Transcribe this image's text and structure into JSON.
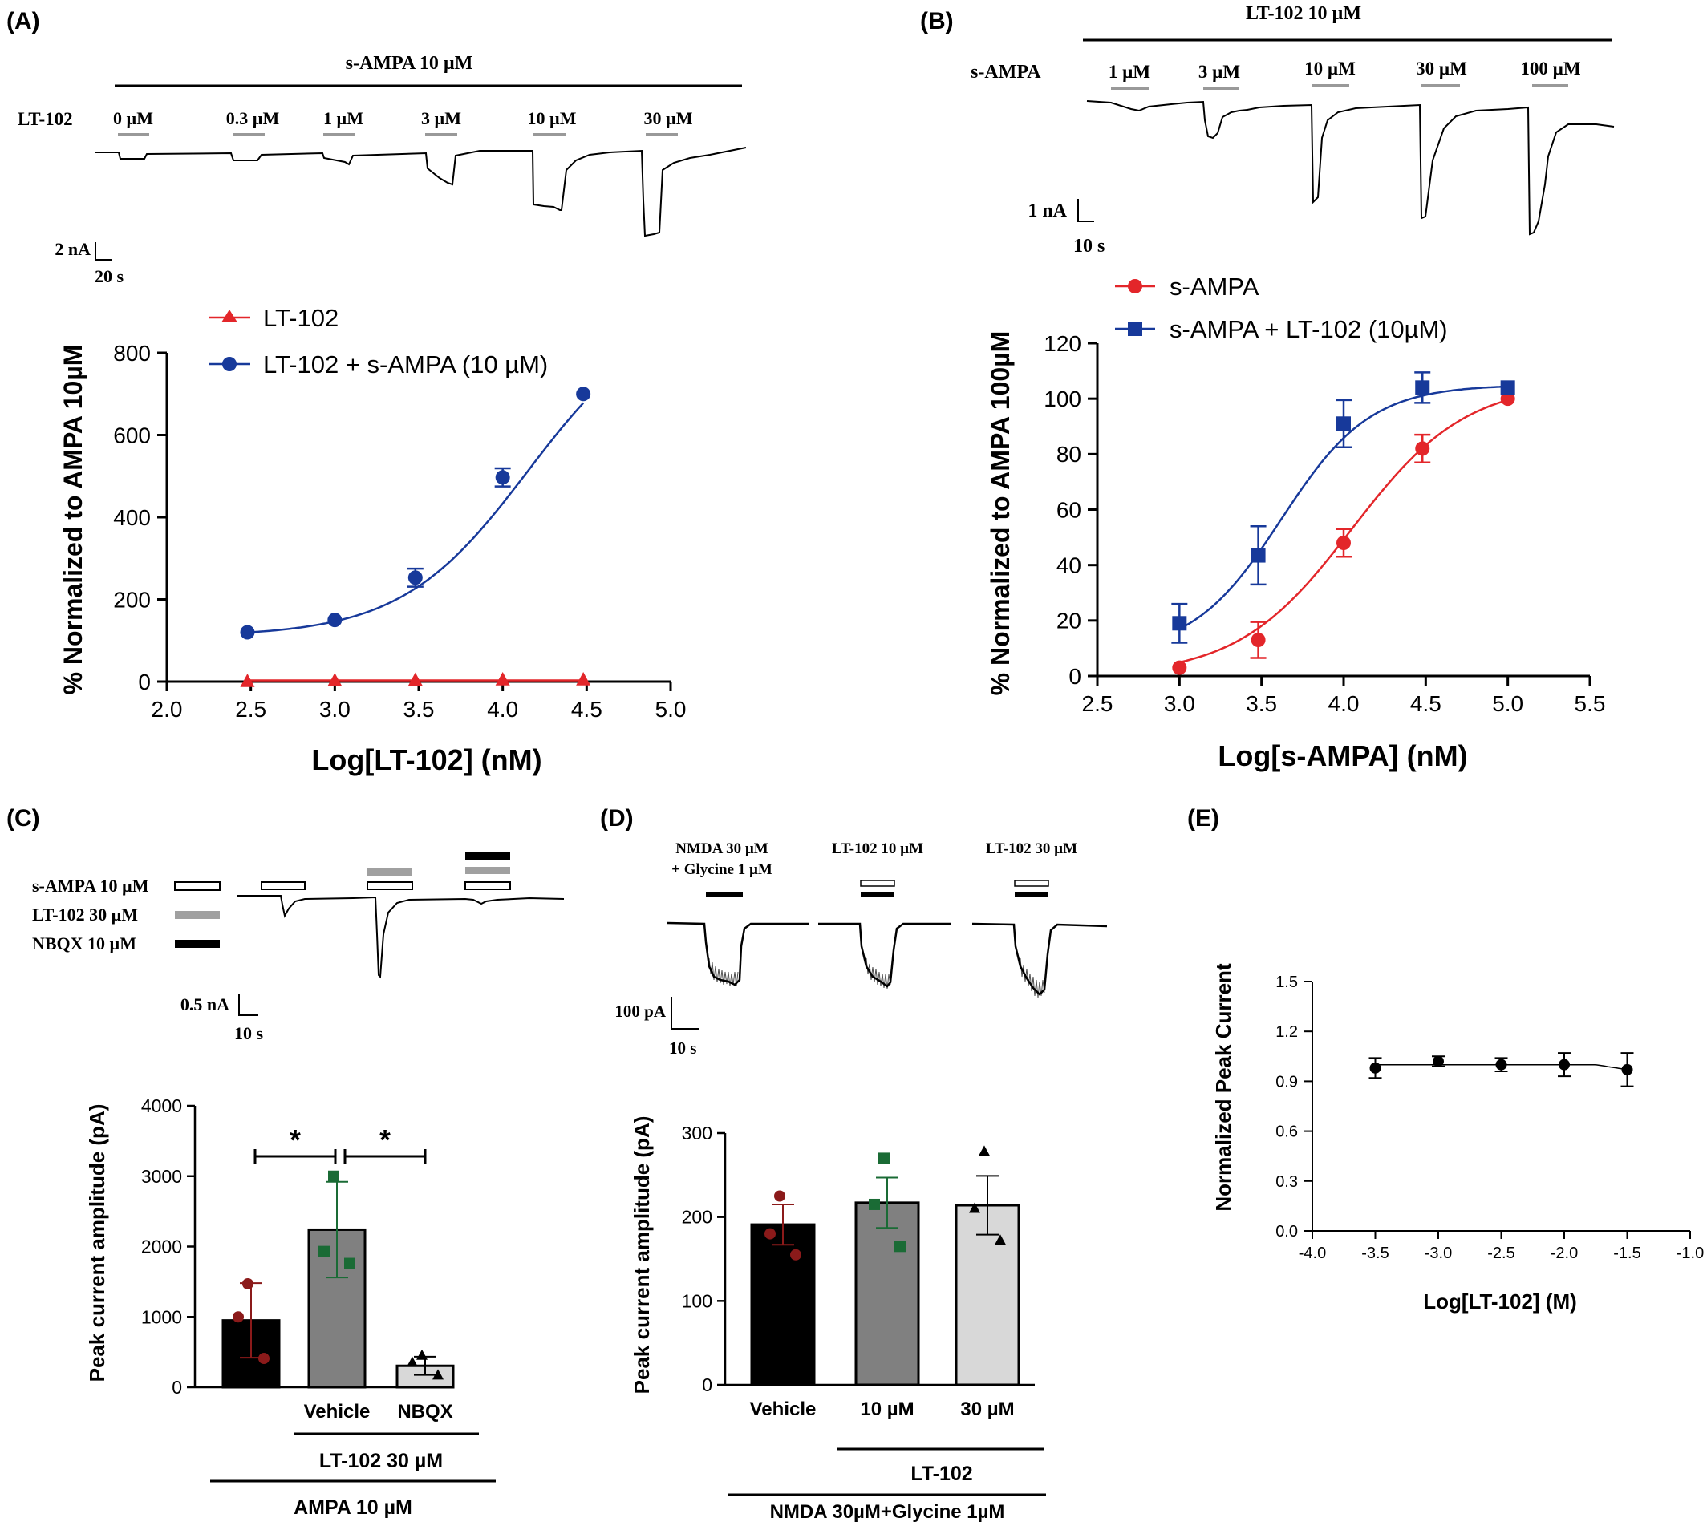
{
  "panels": {
    "A": {
      "letter": "(A)",
      "trace": {
        "bar_label": "s-AMPA 10 µM",
        "row_label": "LT-102",
        "concentrations": [
          "0 µM",
          "0.3 µM",
          "1 µM",
          "3 µM",
          "10 µM",
          "30 µM"
        ],
        "scale_current": "2 nA",
        "scale_time": "20 s"
      }
    },
    "B": {
      "letter": "(B)",
      "trace": {
        "bar_label": "LT-102 10 µM",
        "row_label": "s-AMPA",
        "concentrations": [
          "1 µM",
          "3 µM",
          "10 µM",
          "30 µM",
          "100 µM"
        ],
        "scale_current": "1 nA",
        "scale_time": "10 s"
      }
    },
    "C": {
      "letter": "(C)",
      "trace": {
        "legend": [
          "s-AMPA 10 µM",
          "LT-102 30 µM",
          "NBQX 10 µM"
        ],
        "scale_current": "0.5 nA",
        "scale_time": "10 s"
      },
      "bar_group_label": "LT-102 30 µM",
      "bottom_label": "AMPA 10 µM",
      "significance": "*"
    },
    "D": {
      "letter": "(D)",
      "trace": {
        "labels": [
          "NMDA 30 µM",
          "+ Glycine 1 µM",
          "LT-102 10 µM",
          "LT-102 30 µM"
        ],
        "scale_current": "100 pA",
        "scale_time": "10 s"
      },
      "group_label": "LT-102",
      "bottom_label": "NMDA 30µM+Glycine 1µM"
    },
    "E": {
      "letter": "(E)"
    }
  },
  "colors": {
    "red": "#e3262a",
    "blue": "#17399a",
    "dark_red": "#8b1a1a",
    "green": "#1a6b35",
    "black": "#000000",
    "gray_bar": "#808080",
    "light_bar": "#d8d8d8",
    "stim_gray": "#a0a0a0"
  },
  "chart_data": [
    {
      "panel": "A",
      "type": "scatter",
      "xlabel": "Log[LT-102] (nM)",
      "ylabel": "% Normalized to AMPA 10µM",
      "xlim": [
        2.0,
        5.0
      ],
      "ylim": [
        0,
        800
      ],
      "xticks": [
        "2.0",
        "2.5",
        "3.0",
        "3.5",
        "4.0",
        "4.5",
        "5.0"
      ],
      "yticks": [
        "0",
        "200",
        "400",
        "600",
        "800"
      ],
      "legend_position": "top-left",
      "series": [
        {
          "name": "LT-102",
          "marker": "triangle",
          "color": "#e3262a",
          "x": [
            2.48,
            3.0,
            3.48,
            4.0,
            4.48
          ],
          "y": [
            0,
            2,
            3,
            4,
            4
          ],
          "err": [
            0,
            0,
            0,
            0,
            0
          ]
        },
        {
          "name": "LT-102 + s-AMPA (10 µM)",
          "marker": "circle",
          "color": "#17399a",
          "x": [
            2.48,
            3.0,
            3.48,
            4.0,
            4.48
          ],
          "y": [
            120,
            150,
            253,
            497,
            700
          ],
          "err": [
            0,
            0,
            22,
            22,
            0
          ]
        }
      ]
    },
    {
      "panel": "B",
      "type": "scatter",
      "xlabel": "Log[s-AMPA] (nM)",
      "ylabel": "% Normalized to AMPA 100µM",
      "xlim": [
        2.5,
        5.5
      ],
      "ylim": [
        0,
        120
      ],
      "xticks": [
        "2.5",
        "3.0",
        "3.5",
        "4.0",
        "4.5",
        "5.0",
        "5.5"
      ],
      "yticks": [
        "0",
        "20",
        "40",
        "60",
        "80",
        "100",
        "120"
      ],
      "legend_position": "top",
      "series": [
        {
          "name": "s-AMPA",
          "marker": "circle",
          "color": "#e3262a",
          "x": [
            3.0,
            3.48,
            4.0,
            4.48,
            5.0
          ],
          "y": [
            3,
            13,
            48,
            82,
            100
          ],
          "err": [
            0,
            6.5,
            5,
            5,
            0
          ]
        },
        {
          "name": "s-AMPA + LT-102 (10µM)",
          "marker": "square",
          "color": "#17399a",
          "x": [
            3.0,
            3.48,
            4.0,
            4.48,
            5.0
          ],
          "y": [
            19,
            43.5,
            91,
            104,
            104
          ],
          "err": [
            7,
            10.5,
            8.5,
            5.5,
            0
          ]
        }
      ]
    },
    {
      "panel": "C",
      "type": "bar",
      "ylabel": "Peak current amplitude (pA)",
      "ylim": [
        0,
        4000
      ],
      "yticks": [
        "0",
        "1000",
        "2000",
        "3000",
        "4000"
      ],
      "categories": [
        "",
        "Vehicle",
        "NBQX"
      ],
      "values": [
        950,
        2240,
        305
      ],
      "sem": [
        530,
        680,
        130
      ],
      "points": [
        [
          1470,
          1000,
          410
        ],
        [
          3000,
          1930,
          1760
        ],
        [
          450,
          350,
          170
        ]
      ],
      "point_markers": [
        "circle",
        "square",
        "triangle"
      ],
      "bar_colors": [
        "#000000",
        "#808080",
        "#d8d8d8"
      ]
    },
    {
      "panel": "D",
      "type": "bar",
      "ylabel": "Peak current amplitude (pA)",
      "ylim": [
        0,
        300
      ],
      "yticks": [
        "0",
        "100",
        "200",
        "300"
      ],
      "categories": [
        "Vehicle",
        "10 µM",
        "30 µM"
      ],
      "values": [
        191,
        217,
        214
      ],
      "sem": [
        24,
        30,
        35
      ],
      "points": [
        [
          225,
          180,
          155
        ],
        [
          270,
          215,
          165
        ],
        [
          278,
          210,
          172
        ]
      ],
      "point_markers": [
        "circle",
        "square",
        "triangle"
      ],
      "bar_colors": [
        "#000000",
        "#808080",
        "#d8d8d8"
      ]
    },
    {
      "panel": "E",
      "type": "scatter",
      "xlabel": "Log[LT-102] (M)",
      "ylabel": "Normalized Peak Current",
      "xlim": [
        -4.0,
        -1.0
      ],
      "ylim": [
        0.0,
        1.5
      ],
      "xticks": [
        "-4.0",
        "-3.5",
        "-3.0",
        "-2.5",
        "-2.0",
        "-1.5",
        "-1.0"
      ],
      "yticks": [
        "0.0",
        "0.3",
        "0.6",
        "0.9",
        "1.2",
        "1.5"
      ],
      "series": [
        {
          "name": "",
          "marker": "circle",
          "color": "#000000",
          "x": [
            -3.5,
            -3.0,
            -2.5,
            -2.0,
            -1.5
          ],
          "y": [
            0.98,
            1.02,
            1.0,
            1.0,
            0.97
          ],
          "err": [
            0.06,
            0.03,
            0.04,
            0.07,
            0.1
          ]
        }
      ]
    }
  ]
}
